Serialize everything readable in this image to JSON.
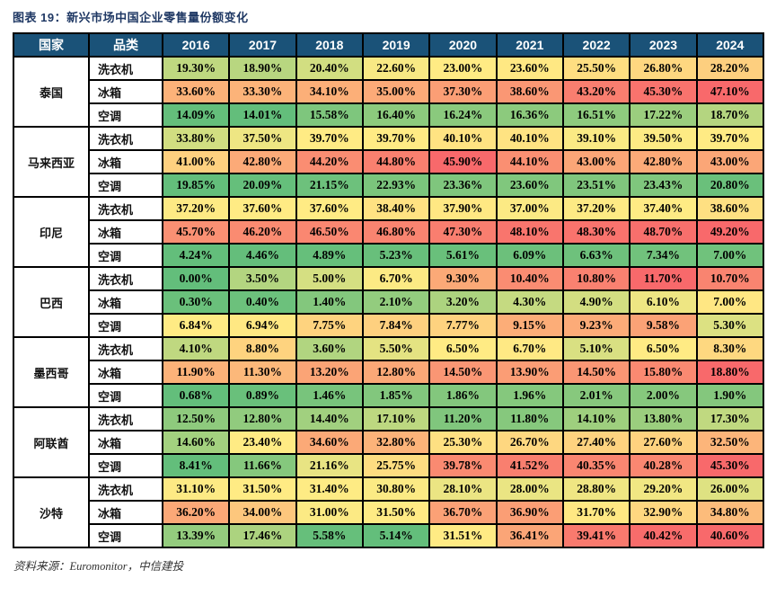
{
  "title": "图表 19：新兴市场中国企业零售量份额变化",
  "source_note": "资料来源：Euromonitor，中信建投",
  "colors": {
    "header_bg": "#1A5278",
    "header_text": "#FFFFFF",
    "title_text": "#1F3864",
    "border": "#000000",
    "scale_min": "#63BE7B",
    "scale_mid": "#FFEB84",
    "scale_max": "#F8696B"
  },
  "table_headers": {
    "country": "国家",
    "category": "品类"
  },
  "chart_data": {
    "type": "heatmap",
    "title": "图表 19：新兴市场中国企业零售量份额变化",
    "value_format": "percent_2dp",
    "color_scale": {
      "description": "3-color scale per country block, midpoint at block median",
      "min_color": "#63BE7B",
      "mid_color": "#FFEB84",
      "max_color": "#F8696B"
    },
    "columns": [
      "2016",
      "2017",
      "2018",
      "2019",
      "2020",
      "2021",
      "2022",
      "2023",
      "2024"
    ],
    "row_groups": [
      {
        "country": "泰国",
        "rows": [
          {
            "category": "洗衣机",
            "values": [
              19.3,
              18.9,
              20.4,
              22.6,
              23.0,
              23.6,
              25.5,
              26.8,
              28.2
            ]
          },
          {
            "category": "冰箱",
            "values": [
              33.6,
              33.3,
              34.1,
              35.0,
              37.3,
              38.6,
              43.2,
              45.3,
              47.1
            ]
          },
          {
            "category": "空调",
            "values": [
              14.09,
              14.01,
              15.58,
              16.4,
              16.24,
              16.36,
              16.51,
              17.22,
              18.7
            ]
          }
        ]
      },
      {
        "country": "马来西亚",
        "rows": [
          {
            "category": "洗衣机",
            "values": [
              33.8,
              37.5,
              39.7,
              39.7,
              40.1,
              40.1,
              39.1,
              39.5,
              39.7
            ]
          },
          {
            "category": "冰箱",
            "values": [
              41.0,
              42.8,
              44.2,
              44.8,
              45.9,
              44.1,
              43.0,
              42.8,
              43.0
            ]
          },
          {
            "category": "空调",
            "values": [
              19.85,
              20.09,
              21.15,
              22.93,
              23.36,
              23.6,
              23.51,
              23.43,
              20.8
            ]
          }
        ]
      },
      {
        "country": "印尼",
        "rows": [
          {
            "category": "洗衣机",
            "values": [
              37.2,
              37.6,
              37.6,
              38.4,
              37.9,
              37.0,
              37.2,
              37.4,
              38.6
            ]
          },
          {
            "category": "冰箱",
            "values": [
              45.7,
              46.2,
              46.5,
              46.8,
              47.3,
              48.1,
              48.3,
              48.7,
              49.2
            ]
          },
          {
            "category": "空调",
            "values": [
              4.24,
              4.46,
              4.89,
              5.23,
              5.61,
              6.09,
              6.63,
              7.34,
              7.0
            ]
          }
        ]
      },
      {
        "country": "巴西",
        "rows": [
          {
            "category": "洗衣机",
            "values": [
              0.0,
              3.5,
              5.0,
              6.7,
              9.3,
              10.4,
              10.8,
              11.7,
              10.7
            ]
          },
          {
            "category": "冰箱",
            "values": [
              0.3,
              0.4,
              1.4,
              2.1,
              3.2,
              4.3,
              4.9,
              6.1,
              7.0
            ]
          },
          {
            "category": "空调",
            "values": [
              6.84,
              6.94,
              7.75,
              7.84,
              7.77,
              9.15,
              9.23,
              9.58,
              5.3
            ]
          }
        ]
      },
      {
        "country": "墨西哥",
        "rows": [
          {
            "category": "洗衣机",
            "values": [
              4.1,
              8.8,
              3.6,
              5.5,
              6.5,
              6.7,
              5.1,
              6.5,
              8.3
            ]
          },
          {
            "category": "冰箱",
            "values": [
              11.9,
              11.3,
              13.2,
              12.8,
              14.5,
              13.9,
              14.5,
              15.8,
              18.8
            ]
          },
          {
            "category": "空调",
            "values": [
              0.68,
              0.89,
              1.46,
              1.85,
              1.86,
              1.96,
              2.01,
              2.0,
              1.9
            ]
          }
        ]
      },
      {
        "country": "阿联酋",
        "rows": [
          {
            "category": "洗衣机",
            "values": [
              12.5,
              12.8,
              14.4,
              17.1,
              11.2,
              11.8,
              14.1,
              13.8,
              17.3
            ]
          },
          {
            "category": "冰箱",
            "values": [
              14.6,
              23.4,
              34.6,
              32.8,
              25.3,
              26.7,
              27.4,
              27.6,
              32.5
            ]
          },
          {
            "category": "空调",
            "values": [
              8.41,
              11.66,
              21.16,
              25.75,
              39.78,
              41.52,
              40.35,
              40.28,
              45.3
            ]
          }
        ]
      },
      {
        "country": "沙特",
        "rows": [
          {
            "category": "洗衣机",
            "values": [
              31.1,
              31.5,
              31.4,
              30.8,
              28.1,
              28.0,
              28.8,
              29.2,
              26.0
            ]
          },
          {
            "category": "冰箱",
            "values": [
              36.2,
              34.0,
              31.0,
              31.5,
              36.7,
              36.9,
              31.7,
              32.9,
              34.8
            ]
          },
          {
            "category": "空调",
            "values": [
              13.39,
              17.46,
              5.58,
              5.14,
              31.51,
              36.41,
              39.41,
              40.42,
              40.6
            ]
          }
        ]
      }
    ]
  }
}
